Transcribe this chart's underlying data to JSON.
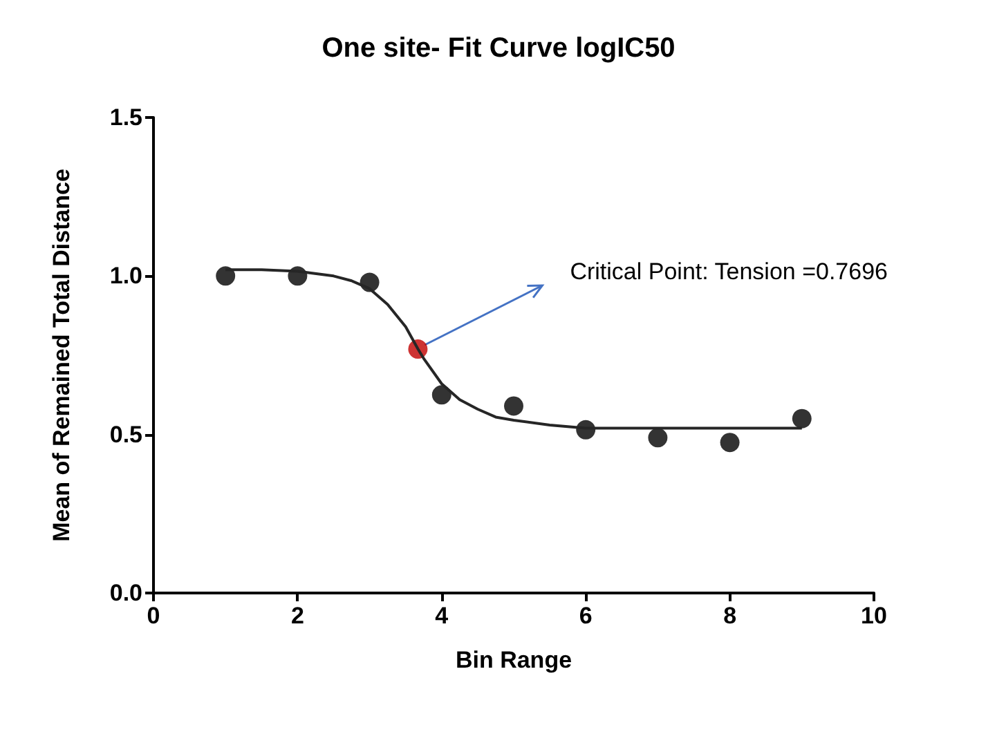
{
  "chart_data": {
    "type": "scatter",
    "title": "One site- Fit Curve logIC50",
    "xlabel": "Bin Range",
    "ylabel": "Mean of Remained Total Distance",
    "series": [
      {
        "type": "line",
        "color": "#262626",
        "marker": "none",
        "x": [
          1,
          1.5,
          2,
          2.5,
          2.75,
          3,
          3.25,
          3.5,
          3.67,
          3.75,
          4,
          4.25,
          4.5,
          4.75,
          5,
          5.5,
          6,
          7,
          8,
          9
        ],
        "values": [
          1.02,
          1.02,
          1.015,
          1.0,
          0.985,
          0.96,
          0.91,
          0.84,
          0.77,
          0.74,
          0.66,
          0.61,
          0.58,
          0.555,
          0.545,
          0.53,
          0.52,
          0.52,
          0.52,
          0.52
        ]
      },
      {
        "color": "#000000",
        "x": [
          1,
          2,
          3,
          4,
          5,
          6,
          7,
          8,
          9
        ],
        "values": [
          1.0,
          1.0,
          0.98,
          0.625,
          0.59,
          0.515,
          0.49,
          0.475,
          0.55
        ]
      },
      {
        "color": "#c00000",
        "x": [
          3.67
        ],
        "values": [
          0.7696
        ]
      }
    ],
    "annotations": [
      {
        "text": "Critical Point: Tension =0.7696",
        "x": 3.67,
        "y": 0.7696
      }
    ],
    "xlim": [
      0,
      10
    ],
    "xticks": [
      0,
      2,
      4,
      6,
      8,
      10
    ],
    "ylim": [
      0,
      1.5
    ],
    "yticks": [
      {
        "value": 0,
        "label": "0.0"
      },
      {
        "value": 0.5,
        "label": "0.5"
      },
      {
        "value": 1,
        "label": "1.0"
      },
      {
        "value": 1.5,
        "label": "1.5"
      }
    ],
    "grid": false,
    "marker": "circle",
    "line_style": "solid"
  }
}
